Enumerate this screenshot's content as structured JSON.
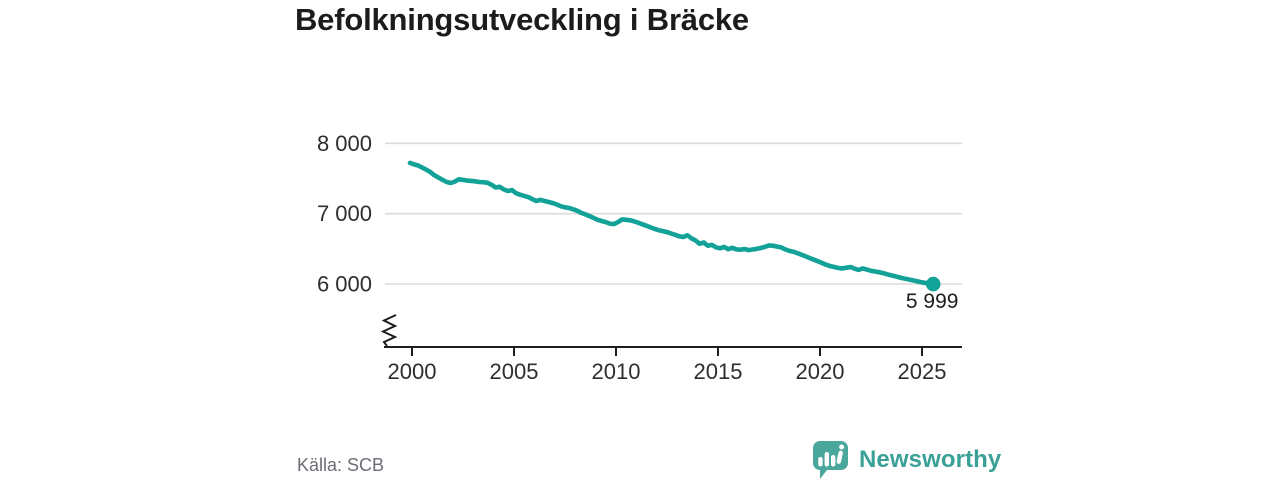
{
  "header": {
    "title": "Befolkningsutveckling i Bräcke"
  },
  "footer": {
    "source": "Källa: SCB",
    "brand": {
      "name": "Newsworthy",
      "icon": "newsworthy-speech-bubble-bar-chart-logo"
    }
  },
  "colors": {
    "line": "#13a297",
    "end_dot": "#13a297",
    "grid": "#dbdbdb",
    "axis": "#1d1d1b",
    "tick_text": "#2e2e2e",
    "title_text": "#1c1c1a",
    "muted_text": "#6c6c75",
    "brand_text": "#3ba096",
    "brand_icon": "#4ba69c",
    "background": "#ffffff"
  },
  "chart_data": {
    "type": "line",
    "title": "Befolkningsutveckling i Bräcke",
    "xlabel": "",
    "ylabel": "",
    "grid": "horizontal-only",
    "legend": "none",
    "axis_break": true,
    "xlim": [
      1998.7,
      2027
    ],
    "ylim": [
      5100,
      8320
    ],
    "xticks": [
      2000,
      2005,
      2010,
      2015,
      2020,
      2025
    ],
    "xtick_labels": [
      "2000",
      "2005",
      "2010",
      "2015",
      "2020",
      "2025"
    ],
    "yticks": [
      8000,
      7000,
      6000
    ],
    "ytick_labels": [
      "8 000",
      "7 000",
      "6 000"
    ],
    "end_label": "5 999",
    "end_value": 5999,
    "series": [
      {
        "name": "Befolkning",
        "x": [
          1999.9,
          2000.1,
          2000.3,
          2000.5,
          2000.7,
          2000.9,
          2001.1,
          2001.3,
          2001.5,
          2001.7,
          2001.9,
          2002.1,
          2002.3,
          2002.5,
          2002.7,
          2002.9,
          2003.1,
          2003.3,
          2003.5,
          2003.7,
          2003.9,
          2004.1,
          2004.3,
          2004.5,
          2004.7,
          2004.9,
          2005.1,
          2005.3,
          2005.5,
          2005.7,
          2005.9,
          2006.1,
          2006.3,
          2006.5,
          2006.7,
          2006.9,
          2007.1,
          2007.3,
          2007.5,
          2007.7,
          2007.9,
          2008.1,
          2008.3,
          2008.5,
          2008.7,
          2008.9,
          2009.1,
          2009.3,
          2009.5,
          2009.7,
          2009.9,
          2010.1,
          2010.3,
          2010.5,
          2010.7,
          2010.9,
          2011.1,
          2011.3,
          2011.5,
          2011.7,
          2011.9,
          2012.1,
          2012.3,
          2012.5,
          2012.7,
          2012.9,
          2013.1,
          2013.3,
          2013.5,
          2013.7,
          2013.9,
          2014.1,
          2014.3,
          2014.5,
          2014.7,
          2014.9,
          2015.1,
          2015.3,
          2015.5,
          2015.7,
          2015.9,
          2016.1,
          2016.3,
          2016.5,
          2016.7,
          2016.9,
          2017.1,
          2017.3,
          2017.5,
          2017.7,
          2017.9,
          2018.1,
          2018.3,
          2018.5,
          2018.7,
          2018.9,
          2019.1,
          2019.3,
          2019.5,
          2019.7,
          2019.9,
          2020.1,
          2020.3,
          2020.5,
          2020.7,
          2020.9,
          2021.1,
          2021.3,
          2021.5,
          2021.7,
          2021.9,
          2022.1,
          2022.3,
          2022.5,
          2022.7,
          2022.9,
          2023.1,
          2023.3,
          2023.5,
          2023.7,
          2023.9,
          2024.1,
          2024.3,
          2024.5,
          2024.7,
          2024.9,
          2025.1,
          2025.3,
          2025.55
        ],
        "values": [
          7722,
          7700,
          7685,
          7655,
          7625,
          7590,
          7545,
          7512,
          7480,
          7450,
          7435,
          7455,
          7488,
          7480,
          7470,
          7465,
          7460,
          7450,
          7447,
          7438,
          7410,
          7372,
          7382,
          7345,
          7322,
          7335,
          7290,
          7270,
          7252,
          7235,
          7205,
          7180,
          7195,
          7180,
          7165,
          7150,
          7130,
          7105,
          7090,
          7080,
          7062,
          7040,
          7010,
          6990,
          6965,
          6940,
          6912,
          6895,
          6880,
          6858,
          6852,
          6880,
          6918,
          6912,
          6905,
          6890,
          6870,
          6848,
          6828,
          6805,
          6782,
          6765,
          6752,
          6738,
          6718,
          6700,
          6678,
          6668,
          6692,
          6650,
          6618,
          6572,
          6590,
          6545,
          6556,
          6522,
          6508,
          6528,
          6494,
          6514,
          6492,
          6488,
          6498,
          6482,
          6490,
          6500,
          6512,
          6528,
          6548,
          6545,
          6532,
          6520,
          6492,
          6470,
          6458,
          6438,
          6415,
          6392,
          6368,
          6345,
          6322,
          6298,
          6275,
          6255,
          6242,
          6228,
          6222,
          6232,
          6242,
          6218,
          6200,
          6222,
          6205,
          6188,
          6178,
          6168,
          6155,
          6138,
          6122,
          6108,
          6092,
          6080,
          6068,
          6055,
          6042,
          6028,
          6018,
          6010,
          5999
        ]
      }
    ]
  }
}
